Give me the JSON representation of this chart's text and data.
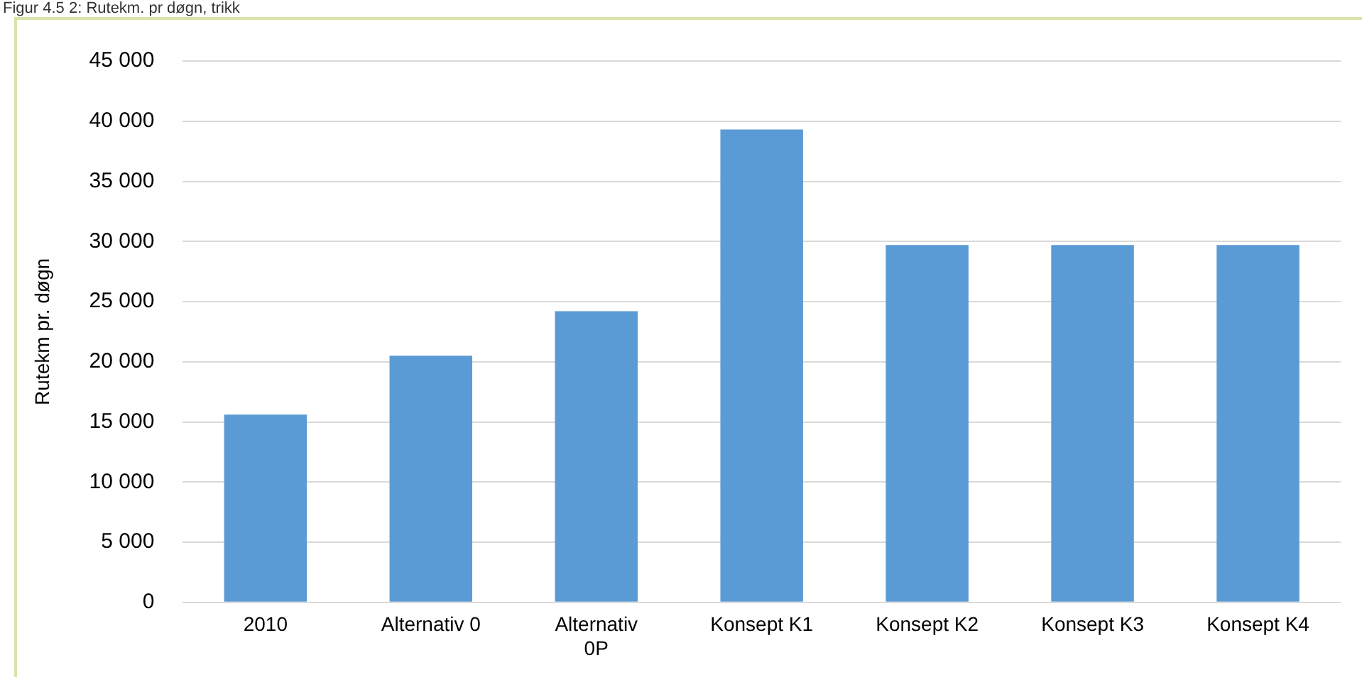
{
  "chart_data": {
    "type": "bar",
    "title": "Figur 4.5 2: Rutekm. pr døgn, trikk",
    "ylabel": "Rutekm pr. døgn",
    "categories": [
      "2010",
      "Alternativ 0",
      "Alternativ 0P",
      "Konsept K1",
      "Konsept K2",
      "Konsept K3",
      "Konsept K4"
    ],
    "values": [
      15600,
      20500,
      24200,
      39300,
      29700,
      29700,
      29700
    ],
    "color": "#5b9bd5",
    "ylim": [
      0,
      45000
    ],
    "yticks": [
      0,
      5000,
      10000,
      15000,
      20000,
      25000,
      30000,
      35000,
      40000,
      45000
    ],
    "grid": "y"
  }
}
